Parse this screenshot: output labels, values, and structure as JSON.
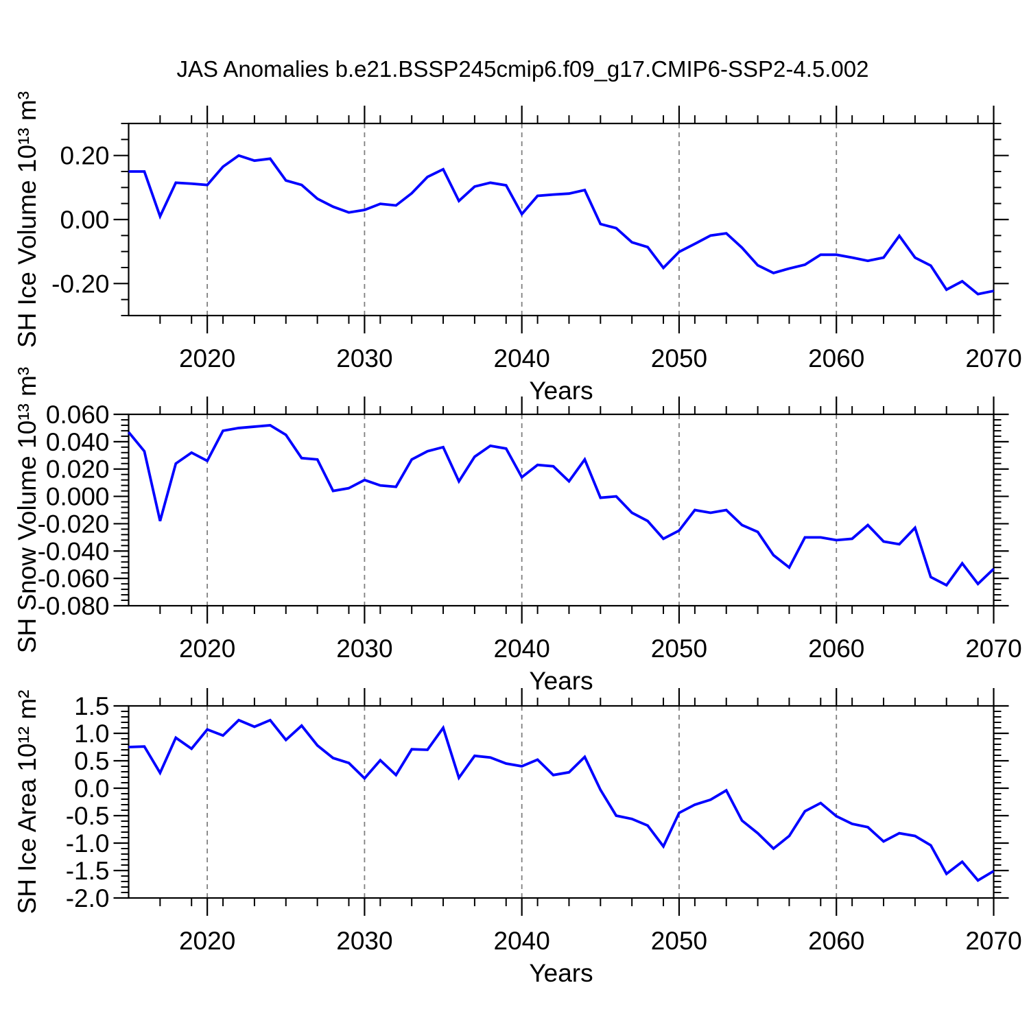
{
  "title": "JAS Anomalies b.e21.BSSP245cmip6.f09_g17.CMIP6-SSP2-4.5.002",
  "line_color": "#0000ff",
  "grid_color": "#7f7f7f",
  "axis_color": "#000000",
  "years": [
    2015,
    2016,
    2017,
    2018,
    2019,
    2020,
    2021,
    2022,
    2023,
    2024,
    2025,
    2026,
    2027,
    2028,
    2029,
    2030,
    2031,
    2032,
    2033,
    2034,
    2035,
    2036,
    2037,
    2038,
    2039,
    2040,
    2041,
    2042,
    2043,
    2044,
    2045,
    2046,
    2047,
    2048,
    2049,
    2050,
    2051,
    2052,
    2053,
    2054,
    2055,
    2056,
    2057,
    2058,
    2059,
    2060,
    2061,
    2062,
    2063,
    2064,
    2065,
    2066,
    2067,
    2068,
    2069,
    2070
  ],
  "chart_data": [
    {
      "type": "line",
      "name": "sh-ice-volume",
      "ylabel": "SH Ice Volume 10¹³ m³",
      "xlabel": "Years",
      "ylim": [
        -0.3,
        0.3
      ],
      "xlim": [
        2015,
        2070
      ],
      "grid": "vertical-dashed",
      "legend": "none",
      "yticks": [
        {
          "v": 0.2,
          "label": "0.20"
        },
        {
          "v": 0.0,
          "label": "0.00"
        },
        {
          "v": -0.2,
          "label": "-0.20"
        }
      ],
      "yminor_step": 0.05,
      "xticks": [
        {
          "v": 2020,
          "label": "2020"
        },
        {
          "v": 2030,
          "label": "2030"
        },
        {
          "v": 2040,
          "label": "2040"
        },
        {
          "v": 2050,
          "label": "2050"
        },
        {
          "v": 2060,
          "label": "2060"
        },
        {
          "v": 2070,
          "label": "2070"
        }
      ],
      "xminor_step": 2,
      "gridlines_x": [
        2020,
        2030,
        2040,
        2050,
        2060
      ],
      "values": [
        0.15,
        0.15,
        0.01,
        0.115,
        0.112,
        0.108,
        0.165,
        0.2,
        0.184,
        0.19,
        0.122,
        0.108,
        0.065,
        0.04,
        0.022,
        0.03,
        0.049,
        0.044,
        0.082,
        0.133,
        0.157,
        0.058,
        0.103,
        0.115,
        0.107,
        0.017,
        0.074,
        0.078,
        0.081,
        0.092,
        -0.014,
        -0.027,
        -0.071,
        -0.086,
        -0.151,
        -0.101,
        -0.076,
        -0.05,
        -0.043,
        -0.088,
        -0.143,
        -0.167,
        -0.153,
        -0.141,
        -0.11,
        -0.11,
        -0.119,
        -0.129,
        -0.119,
        -0.051,
        -0.119,
        -0.144,
        -0.219,
        -0.193,
        -0.233,
        -0.223
      ]
    },
    {
      "type": "line",
      "name": "sh-snow-volume",
      "ylabel": "SH Snow Volume 10¹³ m³",
      "xlabel": "Years",
      "ylim": [
        -0.08,
        0.06
      ],
      "xlim": [
        2015,
        2070
      ],
      "grid": "vertical-dashed",
      "legend": "none",
      "yticks": [
        {
          "v": 0.06,
          "label": "0.060"
        },
        {
          "v": 0.04,
          "label": "0.040"
        },
        {
          "v": 0.02,
          "label": "0.020"
        },
        {
          "v": 0.0,
          "label": "0.000"
        },
        {
          "v": -0.02,
          "label": "-0.020"
        },
        {
          "v": -0.04,
          "label": "-0.040"
        },
        {
          "v": -0.06,
          "label": "-0.060"
        },
        {
          "v": -0.08,
          "label": "-0.080"
        }
      ],
      "yminor_step": 0.004,
      "xticks": [
        {
          "v": 2020,
          "label": "2020"
        },
        {
          "v": 2030,
          "label": "2030"
        },
        {
          "v": 2040,
          "label": "2040"
        },
        {
          "v": 2050,
          "label": "2050"
        },
        {
          "v": 2060,
          "label": "2060"
        },
        {
          "v": 2070,
          "label": "2070"
        }
      ],
      "xminor_step": 2,
      "gridlines_x": [
        2020,
        2030,
        2040,
        2050,
        2060
      ],
      "values": [
        0.047,
        0.033,
        -0.018,
        0.024,
        0.032,
        0.026,
        0.048,
        0.05,
        0.051,
        0.052,
        0.045,
        0.028,
        0.027,
        0.004,
        0.006,
        0.012,
        0.008,
        0.007,
        0.027,
        0.033,
        0.036,
        0.011,
        0.029,
        0.037,
        0.035,
        0.014,
        0.023,
        0.022,
        0.011,
        0.027,
        -0.001,
        0.0,
        -0.012,
        -0.018,
        -0.031,
        -0.025,
        -0.01,
        -0.012,
        -0.01,
        -0.021,
        -0.026,
        -0.043,
        -0.052,
        -0.03,
        -0.03,
        -0.032,
        -0.031,
        -0.021,
        -0.033,
        -0.035,
        -0.023,
        -0.059,
        -0.065,
        -0.049,
        -0.064,
        -0.053
      ]
    },
    {
      "type": "line",
      "name": "sh-ice-area",
      "ylabel": "SH Ice Area 10¹² m²",
      "xlabel": "Years",
      "ylim": [
        -2.0,
        1.5
      ],
      "xlim": [
        2015,
        2070
      ],
      "grid": "vertical-dashed",
      "legend": "none",
      "yticks": [
        {
          "v": 1.5,
          "label": "1.5"
        },
        {
          "v": 1.0,
          "label": "1.0"
        },
        {
          "v": 0.5,
          "label": "0.5"
        },
        {
          "v": 0.0,
          "label": "0.0"
        },
        {
          "v": -0.5,
          "label": "-0.5"
        },
        {
          "v": -1.0,
          "label": "-1.0"
        },
        {
          "v": -1.5,
          "label": "-1.5"
        },
        {
          "v": -2.0,
          "label": "-2.0"
        }
      ],
      "yminor_step": 0.1,
      "xticks": [
        {
          "v": 2020,
          "label": "2020"
        },
        {
          "v": 2030,
          "label": "2030"
        },
        {
          "v": 2040,
          "label": "2040"
        },
        {
          "v": 2050,
          "label": "2050"
        },
        {
          "v": 2060,
          "label": "2060"
        },
        {
          "v": 2070,
          "label": "2070"
        }
      ],
      "xminor_step": 2,
      "gridlines_x": [
        2020,
        2030,
        2040,
        2050,
        2060
      ],
      "values": [
        0.75,
        0.76,
        0.28,
        0.92,
        0.72,
        1.07,
        0.96,
        1.24,
        1.12,
        1.24,
        0.88,
        1.14,
        0.78,
        0.55,
        0.46,
        0.18,
        0.51,
        0.24,
        0.71,
        0.7,
        1.1,
        0.19,
        0.59,
        0.56,
        0.45,
        0.4,
        0.52,
        0.24,
        0.29,
        0.57,
        -0.03,
        -0.5,
        -0.56,
        -0.68,
        -1.06,
        -0.45,
        -0.3,
        -0.21,
        -0.04,
        -0.59,
        -0.82,
        -1.1,
        -0.87,
        -0.42,
        -0.27,
        -0.51,
        -0.65,
        -0.71,
        -0.97,
        -0.82,
        -0.87,
        -1.04,
        -1.56,
        -1.34,
        -1.68,
        -1.51
      ]
    }
  ]
}
